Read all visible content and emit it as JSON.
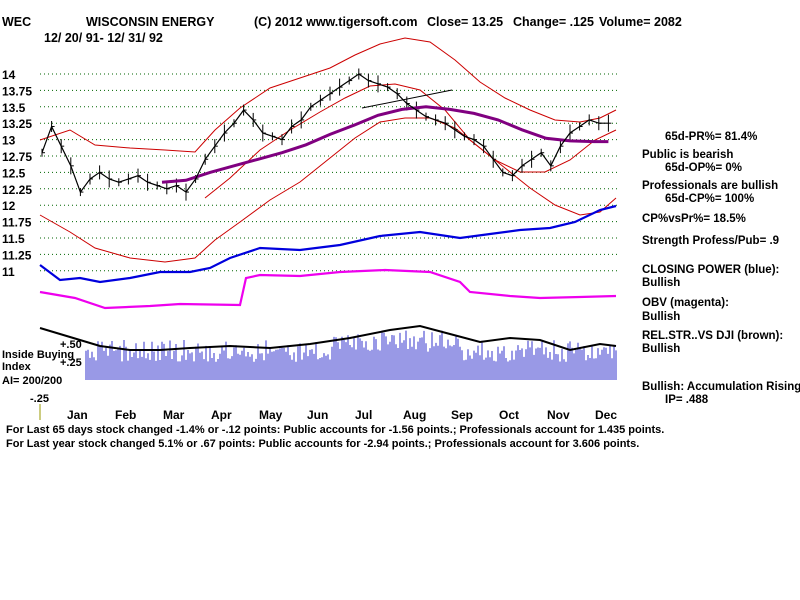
{
  "header": {
    "ticker": "WEC",
    "company": "WISCONSIN ENERGY",
    "copyright": "(C) 2012 www.tigersoft.com",
    "close": "Close=  13.25",
    "change": "Change= .125",
    "volume": "Volume= 2082",
    "date_range": "12/ 20/ 91- 12/ 31/ 92"
  },
  "side_panel": {
    "pr": "65d-PR%= 81.4%",
    "public_bearish": "Public is bearish",
    "op": "65d-OP%= 0%",
    "pros_bullish": "Professionals are bullish",
    "cp": "65d-CP%= 100%",
    "cp_vs_pr": "CP%vsPr%=  18.5%",
    "strength": "Strength Profess/Pub= .9",
    "closing_power_label": "CLOSING POWER (blue):",
    "closing_power_value": "Bullish",
    "obv_label": "OBV (magenta):",
    "obv_value": "Bullish",
    "relstr_label": "REL.STR..VS DJI (brown):",
    "relstr_value": "Bullish",
    "accum_label": "Bullish: Accumulation Rising",
    "ip": "IP=  .488"
  },
  "indicator_labels": {
    "inside_buying": "Inside Buying",
    "index": "Index",
    "ai": "AI= 200/200",
    "plus50": "+.50",
    "plus25": "+.25",
    "minus25": "-.25"
  },
  "footer": {
    "line1": "For Last 65 days stock changed -1.4% or -.12 points:  Public accounts for -1.56 points.;  Professionals account for  1.435 points.",
    "line2": "For Last year stock changed  5.1% or  .67 points:  Public accounts for -2.94 points.;  Professionals account for  3.606 points."
  },
  "chart_data": {
    "type": "line",
    "title": "WISCONSIN ENERGY (WEC) daily price chart",
    "x_months": [
      "Jan",
      "Feb",
      "Mar",
      "Apr",
      "May",
      "Jun",
      "Jul",
      "Aug",
      "Sep",
      "Oct",
      "Nov",
      "Dec"
    ],
    "y_ticks": [
      "14",
      "13.75",
      "13.5",
      "13.25",
      "13",
      "12.75",
      "12.5",
      "12.25",
      "12",
      "11.75",
      "11.5",
      "11.25",
      "11"
    ],
    "ylim": [
      11,
      14
    ],
    "grid": "dotted horizontal",
    "colors": {
      "price": "#000000",
      "bands": "#cc0000",
      "ma": "#800080",
      "closing_power": "#0000dd",
      "obv": "#ee00ee",
      "volume": "#3333cc",
      "relstr": "#996633"
    },
    "series": [
      {
        "name": "Close",
        "x_month": [
          0.0,
          0.2,
          0.4,
          0.6,
          0.8,
          1.0,
          1.2,
          1.4,
          1.6,
          1.8,
          2.0,
          2.2,
          2.4,
          2.6,
          2.8,
          3.0,
          3.2,
          3.4,
          3.6,
          3.8,
          4.0,
          4.2,
          4.4,
          4.6,
          4.8,
          5.0,
          5.2,
          5.4,
          5.6,
          5.8,
          6.0,
          6.2,
          6.4,
          6.6,
          6.8,
          7.0,
          7.2,
          7.4,
          7.6,
          7.8,
          8.0,
          8.2,
          8.4,
          8.6,
          8.8,
          9.0,
          9.2,
          9.4,
          9.6,
          9.8,
          10.0,
          10.2,
          10.4,
          10.6,
          10.8,
          11.0,
          11.2,
          11.4,
          11.6,
          11.8
        ],
        "values": [
          12.8,
          13.2,
          12.9,
          12.6,
          12.2,
          12.4,
          12.5,
          12.4,
          12.35,
          12.4,
          12.45,
          12.35,
          12.3,
          12.25,
          12.3,
          12.2,
          12.4,
          12.7,
          12.9,
          13.1,
          13.25,
          13.45,
          13.3,
          13.1,
          13.05,
          13.0,
          13.2,
          13.3,
          13.5,
          13.6,
          13.7,
          13.8,
          13.9,
          14.0,
          13.9,
          13.85,
          13.8,
          13.7,
          13.55,
          13.45,
          13.35,
          13.3,
          13.25,
          13.15,
          13.05,
          13.0,
          12.9,
          12.7,
          12.5,
          12.45,
          12.6,
          12.7,
          12.8,
          12.6,
          12.9,
          13.1,
          13.2,
          13.3,
          13.25,
          13.25
        ]
      },
      {
        "name": "Moving average (purple)",
        "x_month": [
          2.5,
          3.0,
          3.5,
          4.0,
          4.5,
          5.0,
          5.5,
          6.0,
          6.5,
          7.0,
          7.5,
          8.0,
          8.5,
          9.0,
          9.5,
          10.0,
          10.5,
          11.0,
          11.5,
          11.8
        ],
        "values": [
          12.35,
          12.38,
          12.5,
          12.6,
          12.7,
          12.8,
          12.92,
          13.08,
          13.22,
          13.37,
          13.46,
          13.5,
          13.46,
          13.4,
          13.3,
          13.15,
          13.02,
          12.98,
          12.97,
          12.97
        ]
      }
    ]
  }
}
